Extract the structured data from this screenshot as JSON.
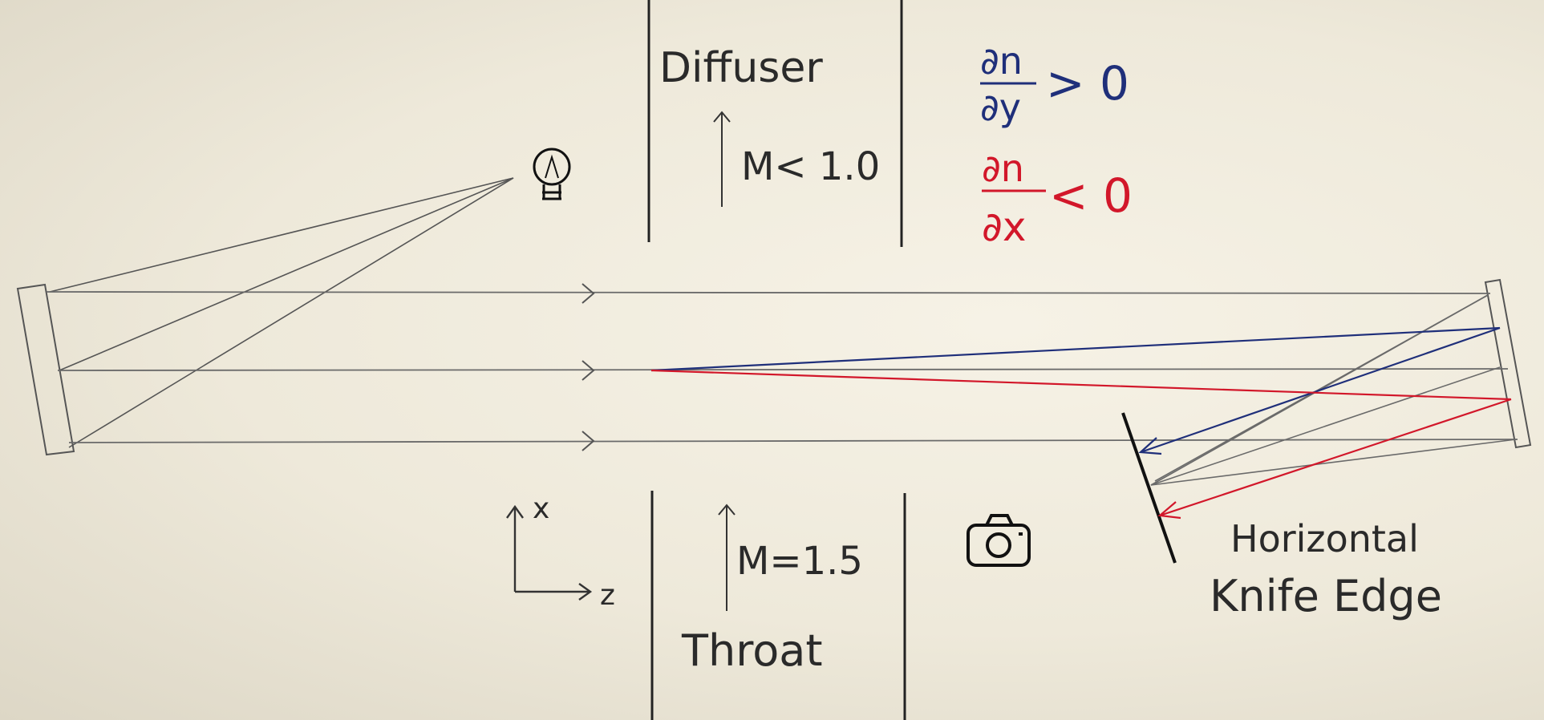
{
  "labels": {
    "diffuser": "Diffuser",
    "diffuser_mach": "M< 1.0",
    "throat": "Throat",
    "throat_mach": "M=1.5",
    "knife_line1": "Horizontal",
    "knife_line2": "Knife Edge",
    "axis_x": "x",
    "axis_z": "z"
  },
  "gradients": {
    "dn_dy": {
      "numerator": "∂n",
      "denominator": "∂y",
      "relation": "> 0"
    },
    "dn_dx": {
      "numerator": "∂n",
      "denominator": "∂x",
      "relation": "< 0"
    }
  },
  "colors": {
    "ink": "#3a3a3a",
    "pencil": "#6e6e6e",
    "blue": "#1f2f7a",
    "red": "#d2172a",
    "paper": "#f2eee2"
  },
  "icons": {
    "light_source": "lightbulb-icon",
    "camera": "camera-icon"
  }
}
